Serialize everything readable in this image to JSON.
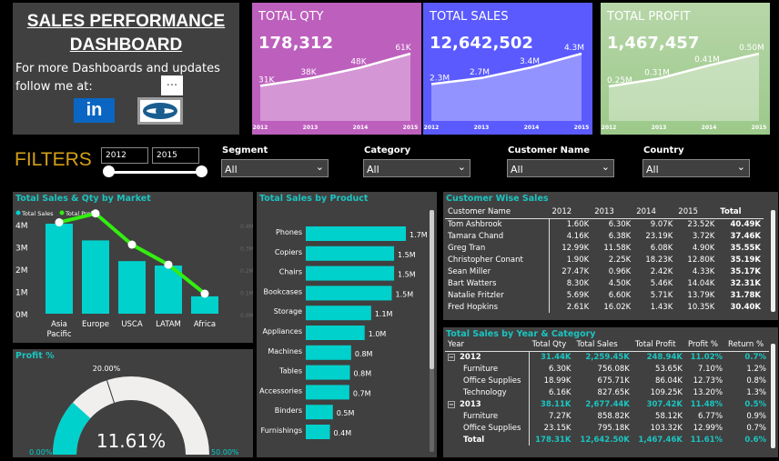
{
  "header": {
    "title_line1": "SALES PERFORMANCE",
    "title_line2": "DASHBOARD",
    "subtitle_line1": "For more Dashboards and updates",
    "subtitle_line2": "follow me at:",
    "linkedin_label": "in",
    "more_label": "...",
    "linkedin_color": "#0a66c2"
  },
  "kpis": [
    {
      "title": "TOTAL QTY",
      "value": "178,312",
      "color": "#bd5fbd",
      "years": [
        "2012",
        "2013",
        "2014",
        "2015"
      ],
      "values": [
        31,
        38,
        48,
        61
      ],
      "labels": [
        "31K",
        "38K",
        "48K",
        "61K"
      ]
    },
    {
      "title": "TOTAL SALES",
      "value": "12,642,502",
      "color": "#5a5aff",
      "years": [
        "2012",
        "2013",
        "2014",
        "2015"
      ],
      "values": [
        2.3,
        2.7,
        3.4,
        4.3
      ],
      "labels": [
        "2.3M",
        "2.7M",
        "3.4M",
        "4.3M"
      ]
    },
    {
      "title": "TOTAL PROFIT",
      "value": "1,467,457",
      "color": "#a8d097",
      "years": [
        "2012",
        "2013",
        "2014",
        "2015"
      ],
      "values": [
        0.25,
        0.31,
        0.41,
        0.5
      ],
      "labels": [
        "0.25M",
        "0.31M",
        "0.41M",
        "0.50M"
      ]
    }
  ],
  "filters": {
    "label": "FILTERS",
    "year_from": "2012",
    "year_to": "2015",
    "dropdowns": [
      {
        "label": "Segment",
        "value": "All"
      },
      {
        "label": "Category",
        "value": "All"
      },
      {
        "label": "Customer Name",
        "value": "All"
      },
      {
        "label": "Country",
        "value": "All"
      }
    ]
  },
  "chart_data": [
    {
      "type": "bar",
      "title": "Total Sales & Qty by Market",
      "categories": [
        "Asia Pacific",
        "Europe",
        "USCA",
        "LATAM",
        "Africa"
      ],
      "series": [
        {
          "name": "Total Sales",
          "type": "bar",
          "values": [
            4.04,
            3.29,
            2.36,
            2.16,
            0.78
          ],
          "color": "#00d1cc"
        },
        {
          "name": "Total Profit",
          "type": "line",
          "axis": "right",
          "values": [
            0.41,
            0.45,
            0.31,
            0.22,
            0.09
          ],
          "color": "#33ee11"
        }
      ],
      "y_ticks": [
        "0M",
        "1M",
        "2M",
        "3M",
        "4M"
      ],
      "y2_ticks": [
        "0.0M",
        "0.1M",
        "0.2M",
        "0.3M",
        "0.4M"
      ],
      "ylim": [
        0,
        4
      ],
      "y2lim": [
        0,
        0.4
      ],
      "unit": "M",
      "legend": "top-left"
    },
    {
      "type": "bar",
      "orientation": "horizontal",
      "title": "Total Sales by Product",
      "categories": [
        "Phones",
        "Copiers",
        "Chairs",
        "Bookcases",
        "Storage",
        "Appliances",
        "Machines",
        "Tables",
        "Accessories",
        "Binders",
        "Furnishings"
      ],
      "values": [
        1.7,
        1.5,
        1.5,
        1.46,
        1.11,
        1.0,
        0.77,
        0.75,
        0.74,
        0.46,
        0.41
      ],
      "labels": [
        "1.7M",
        "1.5M",
        "1.5M",
        "1.5M",
        "1.1M",
        "1.0M",
        "0.8M",
        "0.8M",
        "0.7M",
        "0.5M",
        "0.4M"
      ],
      "color": "#00d1cc"
    },
    {
      "type": "gauge",
      "title": "Profit %",
      "value": 11.61,
      "value_label": "11.61%",
      "min": 0,
      "max": 50,
      "target": 20,
      "min_label": "0.00%",
      "max_label": "50.00%",
      "target_label": "20.00%",
      "color": "#00d1cc"
    }
  ],
  "customer_table": {
    "title": "Customer Wise Sales",
    "columns": [
      "Customer Name",
      "2012",
      "2013",
      "2014",
      "2015",
      "Total"
    ],
    "rows": [
      [
        "Tom Ashbrook",
        "1.60K",
        "6.30K",
        "9.07K",
        "23.52K",
        "40.49K"
      ],
      [
        "Tamara Chand",
        "4.16K",
        "6.38K",
        "23.19K",
        "3.72K",
        "37.46K"
      ],
      [
        "Greg Tran",
        "12.99K",
        "11.58K",
        "6.08K",
        "4.90K",
        "35.55K"
      ],
      [
        "Christopher Conant",
        "1.90K",
        "2.25K",
        "18.23K",
        "12.80K",
        "35.19K"
      ],
      [
        "Sean Miller",
        "27.47K",
        "0.96K",
        "2.42K",
        "4.33K",
        "35.17K"
      ],
      [
        "Bart Watters",
        "8.30K",
        "4.50K",
        "5.46K",
        "14.04K",
        "32.31K"
      ],
      [
        "Natalie Fritzler",
        "5.69K",
        "6.60K",
        "5.71K",
        "13.79K",
        "31.78K"
      ],
      [
        "Fred Hopkins",
        "2.61K",
        "16.02K",
        "1.43K",
        "10.35K",
        "30.40K"
      ]
    ]
  },
  "year_table": {
    "title": "Total Sales by Year & Category",
    "columns": [
      "Year",
      "Total Qty",
      "Total Sales",
      "Total Profit",
      "Profit %",
      "Return %"
    ],
    "rows": [
      {
        "level": 0,
        "cells": [
          "2012",
          "31.44K",
          "2,259.45K",
          "248.94K",
          "11.02%",
          "0.7%"
        ]
      },
      {
        "level": 1,
        "cells": [
          "Furniture",
          "6.30K",
          "756.08K",
          "53.65K",
          "7.10%",
          "1.2%"
        ]
      },
      {
        "level": 1,
        "cells": [
          "Office Supplies",
          "18.99K",
          "675.71K",
          "86.04K",
          "12.73%",
          "0.8%"
        ]
      },
      {
        "level": 1,
        "cells": [
          "Technology",
          "6.16K",
          "827.65K",
          "109.25K",
          "13.20%",
          "1.3%"
        ]
      },
      {
        "level": 0,
        "cells": [
          "2013",
          "38.11K",
          "2,677.44K",
          "307.42K",
          "11.48%",
          "0.5%"
        ]
      },
      {
        "level": 1,
        "cells": [
          "Furniture",
          "7.27K",
          "858.82K",
          "58.12K",
          "6.77%",
          "0.9%"
        ]
      },
      {
        "level": 1,
        "cells": [
          "Office Supplies",
          "23.15K",
          "795.18K",
          "103.32K",
          "12.99%",
          "0.7%"
        ]
      }
    ],
    "total": [
      "Total",
      "178.31K",
      "12,642.50K",
      "1,467.46K",
      "11.61%",
      "0.6%"
    ]
  }
}
